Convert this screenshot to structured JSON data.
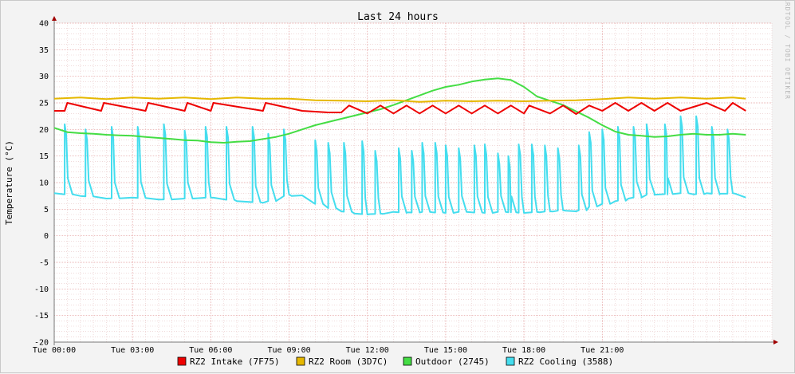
{
  "chart_data": {
    "type": "line",
    "title": "Last 24 hours",
    "ylabel": "Temperature (°C)",
    "watermark": "RRDTOOL / TOBI OETIKER",
    "ylim": [
      -20,
      40
    ],
    "yticks": [
      40,
      35,
      30,
      25,
      20,
      15,
      10,
      5,
      0,
      -5,
      -10,
      -15,
      -20
    ],
    "xlim": [
      0,
      27.5
    ],
    "x_unit": "hours",
    "xticks": [
      {
        "x": 0,
        "label": "Tue 00:00"
      },
      {
        "x": 3,
        "label": "Tue 03:00"
      },
      {
        "x": 6,
        "label": "Tue 06:00"
      },
      {
        "x": 9,
        "label": "Tue 09:00"
      },
      {
        "x": 12,
        "label": "Tue 12:00"
      },
      {
        "x": 15,
        "label": "Tue 15:00"
      },
      {
        "x": 18,
        "label": "Tue 18:00"
      },
      {
        "x": 21,
        "label": "Tue 21:00"
      }
    ],
    "grid": true,
    "legend_position": "bottom",
    "series": [
      {
        "name": "RZ2 Intake (7F75)",
        "color": "#ee0000",
        "x": [
          0,
          0.4,
          0.5,
          1.8,
          1.9,
          3.5,
          3.6,
          5,
          5.1,
          6,
          6.1,
          8,
          8.1,
          9.5,
          10.5,
          11,
          11.3,
          12,
          12.5,
          13,
          13.5,
          14,
          14.5,
          15,
          15.5,
          16,
          16.5,
          17,
          17.5,
          18,
          18.2,
          19,
          19.5,
          20,
          20.5,
          21,
          21.5,
          22,
          22.5,
          23,
          23.5,
          24,
          25,
          25.7,
          26,
          26.5
        ],
        "y": [
          23.5,
          23.5,
          25,
          23.5,
          25,
          23.5,
          25,
          23.5,
          25,
          23.5,
          25,
          23.5,
          25,
          23.5,
          23.2,
          23.2,
          24.5,
          23.0,
          24.5,
          23.0,
          24.5,
          23.0,
          24.5,
          23.0,
          24.5,
          23.0,
          24.5,
          23.0,
          24.5,
          23.0,
          24.5,
          23.0,
          24.5,
          22.9,
          24.5,
          23.5,
          25,
          23.5,
          25,
          23.5,
          25,
          23.5,
          25,
          23.5,
          25,
          23.5
        ]
      },
      {
        "name": "RZ2 Room (3D7C)",
        "color": "#e6b800",
        "x": [
          0,
          1,
          2,
          3,
          4,
          5,
          6,
          7,
          8,
          9,
          10,
          11,
          12,
          13,
          14,
          15,
          16,
          17,
          18,
          19,
          20,
          21,
          22,
          23,
          24,
          25,
          26,
          26.5
        ],
        "y": [
          25.8,
          26.0,
          25.7,
          26.0,
          25.8,
          26.0,
          25.7,
          26.0,
          25.8,
          25.8,
          25.5,
          25.4,
          25.3,
          25.5,
          25.2,
          25.4,
          25.3,
          25.4,
          25.3,
          25.4,
          25.5,
          25.7,
          26.0,
          25.8,
          26.0,
          25.8,
          26.0,
          25.8
        ]
      },
      {
        "name": "Outdoor (2745)",
        "color": "#44dd44",
        "x": [
          0,
          0.5,
          1,
          1.5,
          2,
          2.5,
          3,
          3.5,
          4,
          4.5,
          5,
          5.5,
          6,
          6.5,
          7,
          7.5,
          8,
          8.5,
          9,
          9.5,
          10,
          10.5,
          11,
          11.5,
          12,
          12.5,
          13,
          13.5,
          14,
          14.5,
          15,
          15.5,
          16,
          16.5,
          17,
          17.5,
          18,
          18.5,
          19,
          19.5,
          20,
          20.5,
          21,
          21.5,
          22,
          22.5,
          23,
          23.5,
          24,
          24.5,
          25,
          25.5,
          26,
          26.5
        ],
        "y": [
          20.3,
          19.5,
          19.3,
          19.2,
          19.0,
          18.9,
          18.8,
          18.6,
          18.4,
          18.2,
          18.0,
          17.9,
          17.6,
          17.5,
          17.7,
          17.8,
          18.2,
          18.6,
          19.2,
          20.0,
          20.8,
          21.4,
          22.0,
          22.6,
          23.2,
          23.8,
          24.6,
          25.5,
          26.4,
          27.3,
          28.0,
          28.4,
          29.0,
          29.4,
          29.6,
          29.3,
          28.0,
          26.2,
          25.4,
          24.6,
          23.4,
          22.2,
          20.8,
          19.6,
          19.0,
          18.8,
          18.6,
          18.7,
          19.0,
          19.2,
          19.0,
          19.0,
          19.2,
          19.0
        ]
      },
      {
        "name": "RZ2 Cooling (3588)",
        "color": "#44ddee",
        "x": [
          0,
          1,
          2,
          3,
          4,
          5,
          6,
          7,
          8,
          9,
          9.5,
          10,
          10.5,
          11,
          11.5,
          12,
          12.5,
          13,
          13.5,
          14,
          14.5,
          15,
          15.5,
          16,
          16.5,
          17,
          17.5,
          18,
          18.5,
          19,
          19.5,
          20,
          20.5,
          21,
          21.5,
          22,
          22.5,
          23,
          23.5,
          24,
          24.5,
          25,
          25.5,
          26,
          26.5
        ],
        "y": [
          8.0,
          7.5,
          7.0,
          7.2,
          6.8,
          7.0,
          7.2,
          6.5,
          6.2,
          7.8,
          7.6,
          6.0,
          5.2,
          4.6,
          4.2,
          4.0,
          4.2,
          4.5,
          4.3,
          4.5,
          4.4,
          4.3,
          4.5,
          4.4,
          4.3,
          4.5,
          4.4,
          4.3,
          4.5,
          4.6,
          4.8,
          4.6,
          5.5,
          6.0,
          6.5,
          7.0,
          7.5,
          8.0,
          7.8,
          8.0,
          7.8,
          8.0,
          7.8,
          8.0,
          7.2
        ],
        "spike_times": [
          0.4,
          1.2,
          2.2,
          3.2,
          4.2,
          5.0,
          5.8,
          6.6,
          7.6,
          8.2,
          8.8,
          10.0,
          10.5,
          11.1,
          11.8,
          12.3,
          13.2,
          13.7,
          14.1,
          14.6,
          15.0,
          15.5,
          16.1,
          16.5,
          17.0,
          17.4,
          17.8,
          18.3,
          18.8,
          19.3,
          20.1,
          20.5,
          21.0,
          21.6,
          22.2,
          22.7,
          23.4,
          24.0,
          24.6,
          25.2,
          25.8
        ],
        "spike_heights": [
          21.0,
          20.0,
          20.5,
          20.5,
          21.0,
          19.8,
          20.5,
          20.5,
          20.5,
          19.2,
          20.0,
          18.0,
          17.5,
          17.5,
          17.8,
          16.0,
          16.5,
          16.0,
          17.5,
          17.5,
          17.0,
          16.5,
          17.0,
          17.2,
          15.5,
          15.0,
          17.2,
          17.2,
          17.0,
          16.5,
          17.0,
          19.5,
          20.0,
          20.5,
          20.5,
          21.0,
          21.0,
          22.5,
          22.5,
          20.5,
          20.0
        ]
      }
    ]
  }
}
